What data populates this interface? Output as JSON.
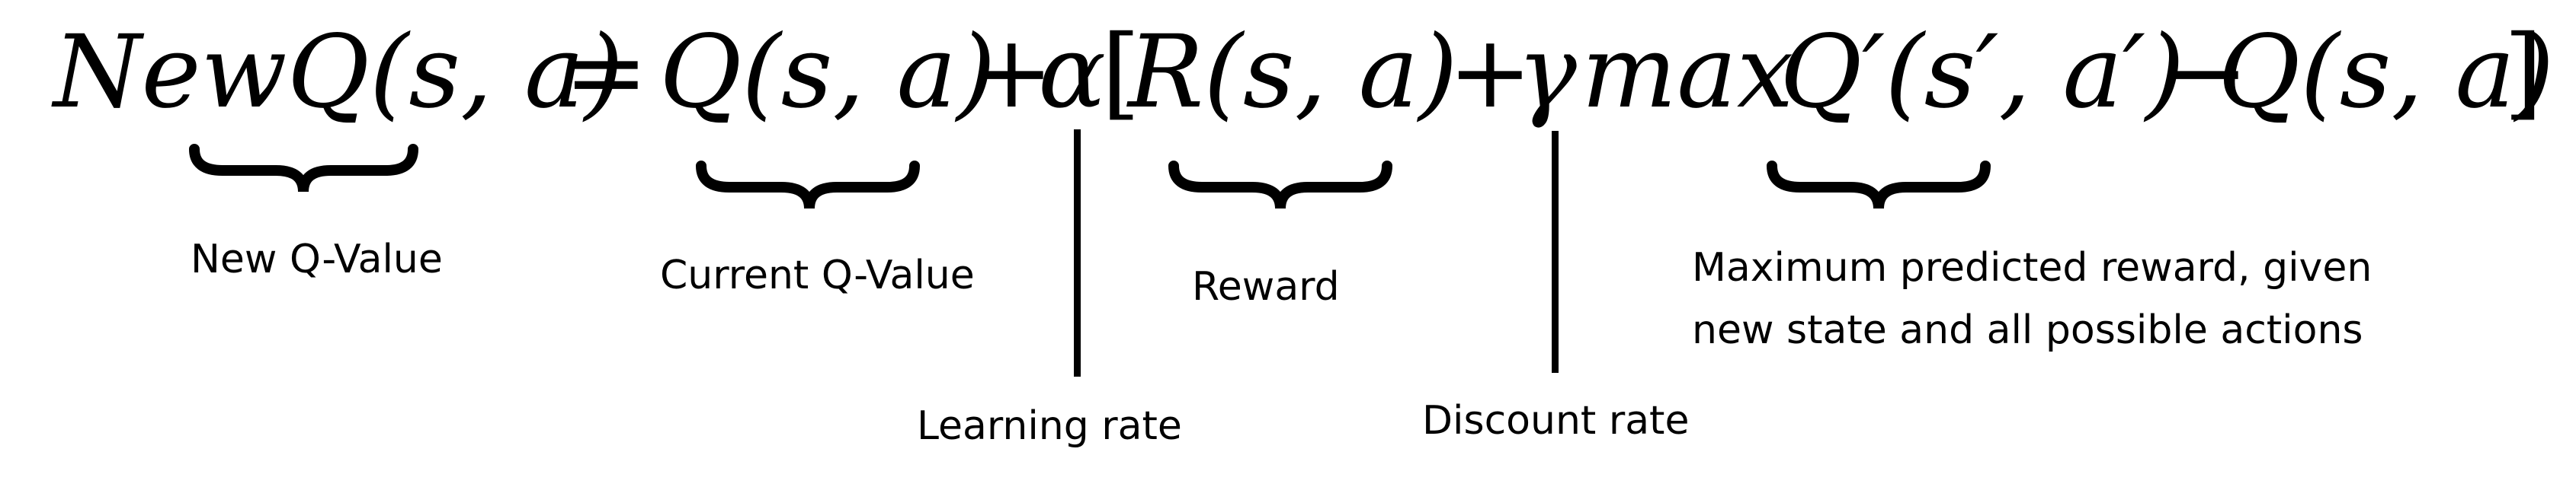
{
  "equation": {
    "lhs": "NewQ(s, a)",
    "equals": "=",
    "current_term": "Q(s, a)",
    "plus_1": "+",
    "alpha": "α",
    "open_bracket": "[",
    "reward_term": "R(s, a)",
    "plus_2": "+",
    "gamma": "γ",
    "max": "max",
    "next_q_term": "Q′(s′, a′)",
    "minus": "−",
    "old_q_term": "Q(s, a)",
    "close_bracket": "]"
  },
  "labels": {
    "new_q_value": "New Q-Value",
    "current_q_value": "Current Q-Value",
    "reward": "Reward",
    "max_predicted_line1": "Maximum predicted reward, given",
    "max_predicted_line2": "new state and all possible actions",
    "learning_rate": "Learning rate",
    "discount_rate": "Discount rate"
  },
  "colors": {
    "ink": "#000000",
    "background": "#ffffff"
  }
}
